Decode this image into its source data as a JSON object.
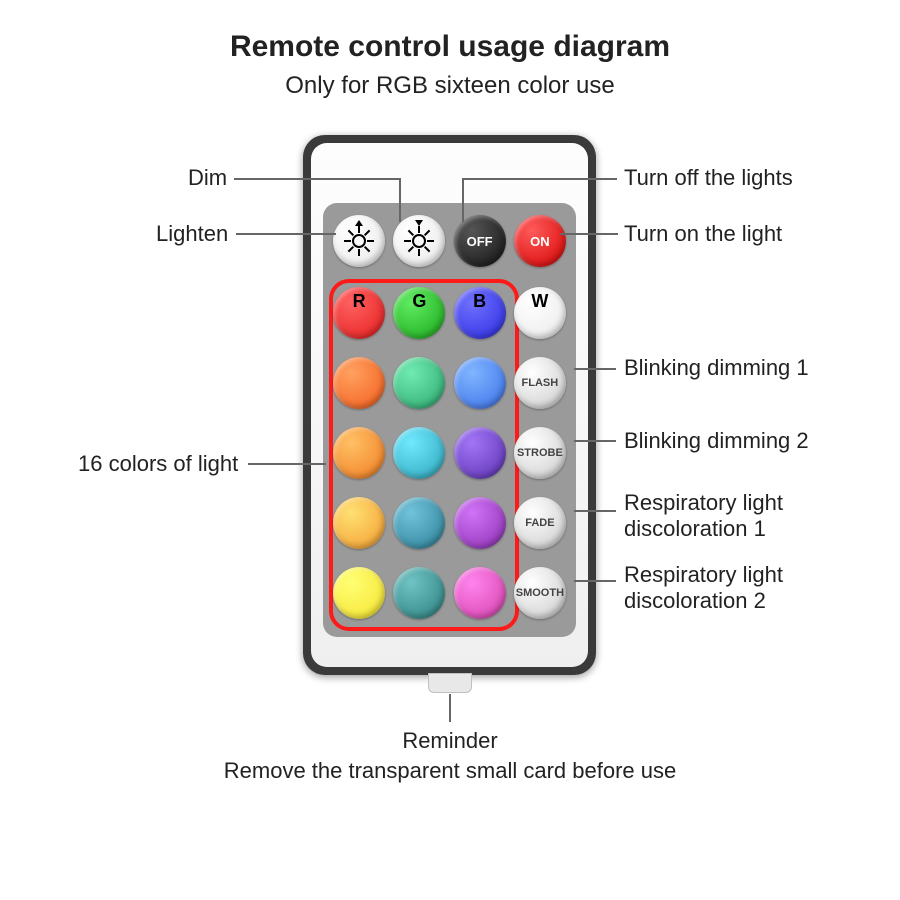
{
  "title": "Remote control usage diagram",
  "subtitle": "Only for RGB sixteen color use",
  "labels": {
    "dim": "Dim",
    "lighten": "Lighten",
    "off": "Turn off the lights",
    "on": "Turn on the light",
    "colors16": "16 colors of light",
    "flash": "Blinking dimming 1",
    "strobe": "Blinking dimming 2",
    "fade": "Respiratory light discoloration 1",
    "smooth": "Respiratory light discoloration 2"
  },
  "buttons": {
    "row0": [
      {
        "type": "white",
        "icon": "sun-up"
      },
      {
        "type": "white",
        "icon": "sun-down"
      },
      {
        "type": "black",
        "text": "OFF"
      },
      {
        "type": "redon",
        "text": "ON"
      }
    ],
    "row1": [
      {
        "color": "#e41b1b",
        "letter": "R"
      },
      {
        "color": "#1aa61a",
        "letter": "G"
      },
      {
        "color": "#2a2ae0",
        "letter": "B"
      },
      {
        "type": "white",
        "letter": "W"
      }
    ],
    "row2": [
      {
        "color": "#f25b1a"
      },
      {
        "color": "#2aa56b"
      },
      {
        "color": "#3a6fe8"
      },
      {
        "type": "silver",
        "text": "FLASH"
      }
    ],
    "row3": [
      {
        "color": "#f07a1f"
      },
      {
        "color": "#2aa3b8"
      },
      {
        "color": "#5b2fb0"
      },
      {
        "type": "silver",
        "text": "STROBE"
      }
    ],
    "row4": [
      {
        "color": "#f39a2d"
      },
      {
        "color": "#2a7d94"
      },
      {
        "color": "#8a2db0"
      },
      {
        "type": "silver",
        "text": "FADE"
      }
    ],
    "row5": [
      {
        "color": "#f5e22d"
      },
      {
        "color": "#2a7d7d"
      },
      {
        "color": "#d43ea8"
      },
      {
        "type": "silver",
        "text": "SMOOTH"
      }
    ]
  },
  "reminder": {
    "line1": "Reminder",
    "line2": "Remove the transparent small card before use"
  },
  "style": {
    "highlight_color": "#ff1a1a",
    "remote_body": "#3a3a3a",
    "panel_gray": "#9a9a9a"
  }
}
